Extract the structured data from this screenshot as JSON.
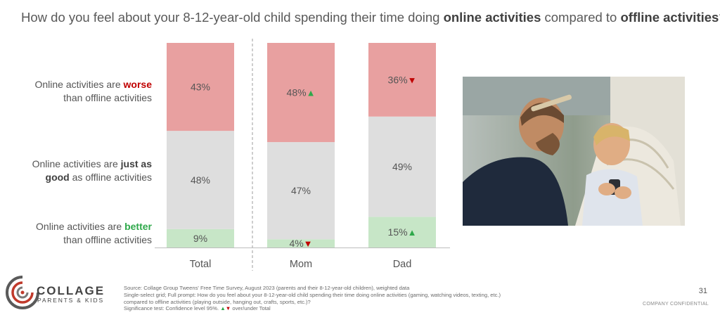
{
  "title": {
    "part1": "How do you feel about your 8-12-year-old child spending their time doing ",
    "bold1": "online activities",
    "part2": " compared to ",
    "bold2": "offline activities",
    "part3": "?"
  },
  "row_labels": {
    "worse": {
      "pre": "Online activities are ",
      "bold": "worse",
      "post": "than offline activities"
    },
    "same": {
      "pre": "Online activities are ",
      "bold": "just as",
      "bold2": "good",
      "post": " as offline activities"
    },
    "better": {
      "pre": "Online activities are ",
      "bold": "better",
      "post": "than offline activities"
    }
  },
  "colors": {
    "worse": "#e8a0a0",
    "same": "#dedede",
    "better": "#c7e6c7",
    "up": "#2ea84a",
    "down": "#c00000"
  },
  "chart_data": {
    "type": "bar",
    "stacked": true,
    "categories": [
      "Total",
      "Mom",
      "Dad"
    ],
    "series": [
      {
        "key": "better",
        "values": [
          9,
          4,
          15
        ],
        "labels": [
          "9%",
          "4%",
          "15%"
        ],
        "sig": [
          "",
          "down",
          "up"
        ]
      },
      {
        "key": "same",
        "values": [
          48,
          47,
          49
        ],
        "labels": [
          "48%",
          "47%",
          "49%"
        ],
        "sig": [
          "",
          "",
          ""
        ]
      },
      {
        "key": "worse",
        "values": [
          43,
          48,
          36
        ],
        "labels": [
          "43%",
          "48%",
          "36%"
        ],
        "sig": [
          "",
          "up",
          "down"
        ]
      }
    ],
    "ylim": [
      0,
      100
    ]
  },
  "photo": {
    "icon": "father-son-photo"
  },
  "logo": {
    "main": "COLLAGE",
    "sub": "PARENTS & KIDS",
    "icon": "collage-logo-icon"
  },
  "notes": [
    "Source: Collage Group Tweens' Free Time Survey, August 2023 (parents and their 8-12-year-old children), weighted data",
    "Single-select grid; Full prompt: How do you feel about your 8-12-year-old child spending their time doing online activities (gaming, watching videos, texting, etc.)",
    "compared to offline activities (playing outside, hanging out, crafts, sports, etc.)?",
    "Significance test: Confidence level 95%."
  ],
  "notes_sig_suffix": " over/under Total",
  "page_number": "31",
  "confidential": "COMPANY CONFIDENTIAL"
}
